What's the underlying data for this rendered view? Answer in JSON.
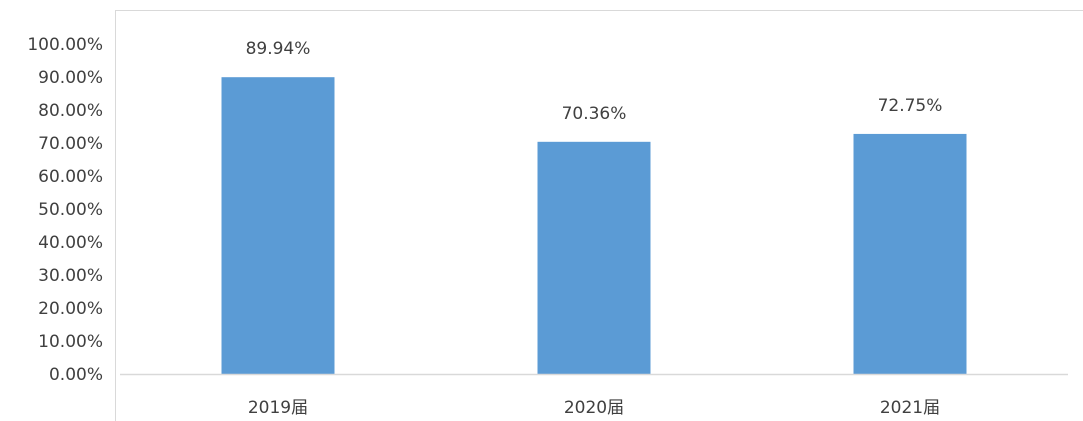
{
  "chart_data": {
    "type": "bar",
    "title": "",
    "xlabel": "",
    "ylabel": "",
    "categories": [
      "2019届",
      "2020届",
      "2021届"
    ],
    "values": [
      89.94,
      70.36,
      72.75
    ],
    "data_labels": [
      "89.94%",
      "70.36%",
      "72.75%"
    ],
    "ylim": [
      0,
      100
    ],
    "y_ticks": [
      0,
      10,
      20,
      30,
      40,
      50,
      60,
      70,
      80,
      90,
      100
    ],
    "y_tick_labels": [
      "0.00%",
      "10.00%",
      "20.00%",
      "30.00%",
      "40.00%",
      "50.00%",
      "60.00%",
      "70.00%",
      "80.00%",
      "90.00%",
      "100.00%"
    ],
    "grid": false,
    "legend": "none",
    "bar_color": "#5b9bd5",
    "axis_color": "#d9d9d9",
    "text_color": "#404040"
  }
}
